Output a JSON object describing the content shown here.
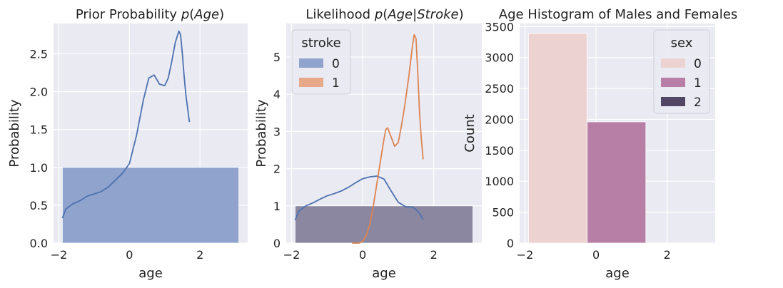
{
  "chart_data": [
    {
      "type": "bar",
      "title": "Prior Probability p(Age)",
      "title_parts": [
        "Prior Probability ",
        "p",
        "(",
        "Age",
        ")"
      ],
      "xlabel": "age",
      "ylabel": "Probability",
      "xlim": [
        -2.15,
        3.35
      ],
      "ylim": [
        0,
        2.9
      ],
      "xticks": [
        -2,
        0,
        2
      ],
      "xtick_labels": [
        "−2",
        "0",
        "2"
      ],
      "yticks": [
        0,
        0.5,
        1,
        1.5,
        2,
        2.5
      ],
      "ytick_labels": [
        "0.0",
        "0.5",
        "1.0",
        "1.5",
        "2.0",
        "2.5"
      ],
      "grid": true,
      "bars": [
        {
          "x0": -1.9,
          "x1": 3.1,
          "value": 1.0,
          "color": "#8fa3cd"
        }
      ],
      "lines": [
        {
          "color": "#4c72b0",
          "x": [
            -1.9,
            -1.8,
            -1.6,
            -1.4,
            -1.2,
            -1.0,
            -0.8,
            -0.6,
            -0.4,
            -0.2,
            0.0,
            0.2,
            0.4,
            0.55,
            0.7,
            0.85,
            1.0,
            1.1,
            1.2,
            1.3,
            1.4,
            1.45,
            1.5,
            1.55,
            1.6,
            1.7
          ],
          "y": [
            0.33,
            0.45,
            0.52,
            0.56,
            0.62,
            0.65,
            0.68,
            0.74,
            0.83,
            0.92,
            1.05,
            1.42,
            1.9,
            2.18,
            2.22,
            2.1,
            2.08,
            2.18,
            2.4,
            2.65,
            2.8,
            2.75,
            2.5,
            2.2,
            1.95,
            1.6
          ]
        }
      ]
    },
    {
      "type": "bar",
      "title": "Likelihood p(Age|Stroke)",
      "title_parts": [
        "Likelihood ",
        "p",
        "(",
        "Age",
        "|",
        "Stroke",
        ")"
      ],
      "xlabel": "age",
      "ylabel": "Probability",
      "xlim": [
        -2.15,
        3.35
      ],
      "ylim": [
        0,
        5.9
      ],
      "xticks": [
        -2,
        0,
        2
      ],
      "xtick_labels": [
        "−2",
        "0",
        "2"
      ],
      "yticks": [
        0,
        1,
        2,
        3,
        4,
        5
      ],
      "ytick_labels": [
        "0",
        "1",
        "2",
        "3",
        "4",
        "5"
      ],
      "grid": true,
      "legend": {
        "title": "stroke",
        "position": "top-left",
        "entries": [
          "0",
          "1"
        ],
        "colors": [
          "#8fa3cd",
          "#e8a98a"
        ]
      },
      "bars": [
        {
          "x0": -1.9,
          "x1": 3.1,
          "value": 1.0,
          "color": "#8b87a0"
        }
      ],
      "lines": [
        {
          "color": "#4c72b0",
          "x": [
            -1.9,
            -1.8,
            -1.6,
            -1.4,
            -1.2,
            -1.0,
            -0.8,
            -0.6,
            -0.4,
            -0.2,
            0.0,
            0.2,
            0.4,
            0.6,
            0.8,
            1.0,
            1.2,
            1.4,
            1.5,
            1.6,
            1.7
          ],
          "y": [
            0.62,
            0.85,
            1.0,
            1.08,
            1.18,
            1.27,
            1.33,
            1.4,
            1.5,
            1.62,
            1.73,
            1.78,
            1.8,
            1.72,
            1.4,
            1.1,
            0.98,
            0.97,
            0.9,
            0.8,
            0.63
          ]
        },
        {
          "color": "#dd8452",
          "x": [
            -0.3,
            -0.1,
            0.0,
            0.1,
            0.2,
            0.3,
            0.4,
            0.5,
            0.6,
            0.65,
            0.7,
            0.8,
            0.9,
            1.0,
            1.1,
            1.2,
            1.3,
            1.4,
            1.45,
            1.5,
            1.55,
            1.6,
            1.65,
            1.7
          ],
          "y": [
            0.0,
            0.0,
            0.05,
            0.2,
            0.5,
            1.0,
            1.6,
            2.2,
            2.8,
            3.05,
            3.1,
            2.85,
            2.6,
            2.7,
            3.2,
            3.8,
            4.5,
            5.3,
            5.6,
            5.5,
            4.6,
            3.5,
            2.8,
            2.25
          ]
        }
      ]
    },
    {
      "type": "bar",
      "title": "Age Histogram of Males and Females",
      "xlabel": "age",
      "ylabel": "Count",
      "xlim": [
        -2.15,
        3.35
      ],
      "ylim": [
        0,
        3550
      ],
      "xticks": [
        -2,
        0,
        2
      ],
      "xtick_labels": [
        "−2",
        "0",
        "2"
      ],
      "yticks": [
        0,
        500,
        1000,
        1500,
        2000,
        2500,
        3000,
        3500
      ],
      "ytick_labels": [
        "0",
        "500",
        "1000",
        "1500",
        "2000",
        "2500",
        "3000",
        "3500"
      ],
      "grid": true,
      "legend": {
        "title": "sex",
        "position": "top-right",
        "entries": [
          "0",
          "1",
          "2"
        ],
        "colors": [
          "#ecd3d2",
          "#b87fa6",
          "#524665"
        ]
      },
      "bars": [
        {
          "x0": -1.9,
          "x1": -0.25,
          "value": 3390,
          "color": "#ecd3d2"
        },
        {
          "x0": -0.25,
          "x1": 1.4,
          "value": 1960,
          "color": "#b87fa6"
        }
      ]
    }
  ]
}
